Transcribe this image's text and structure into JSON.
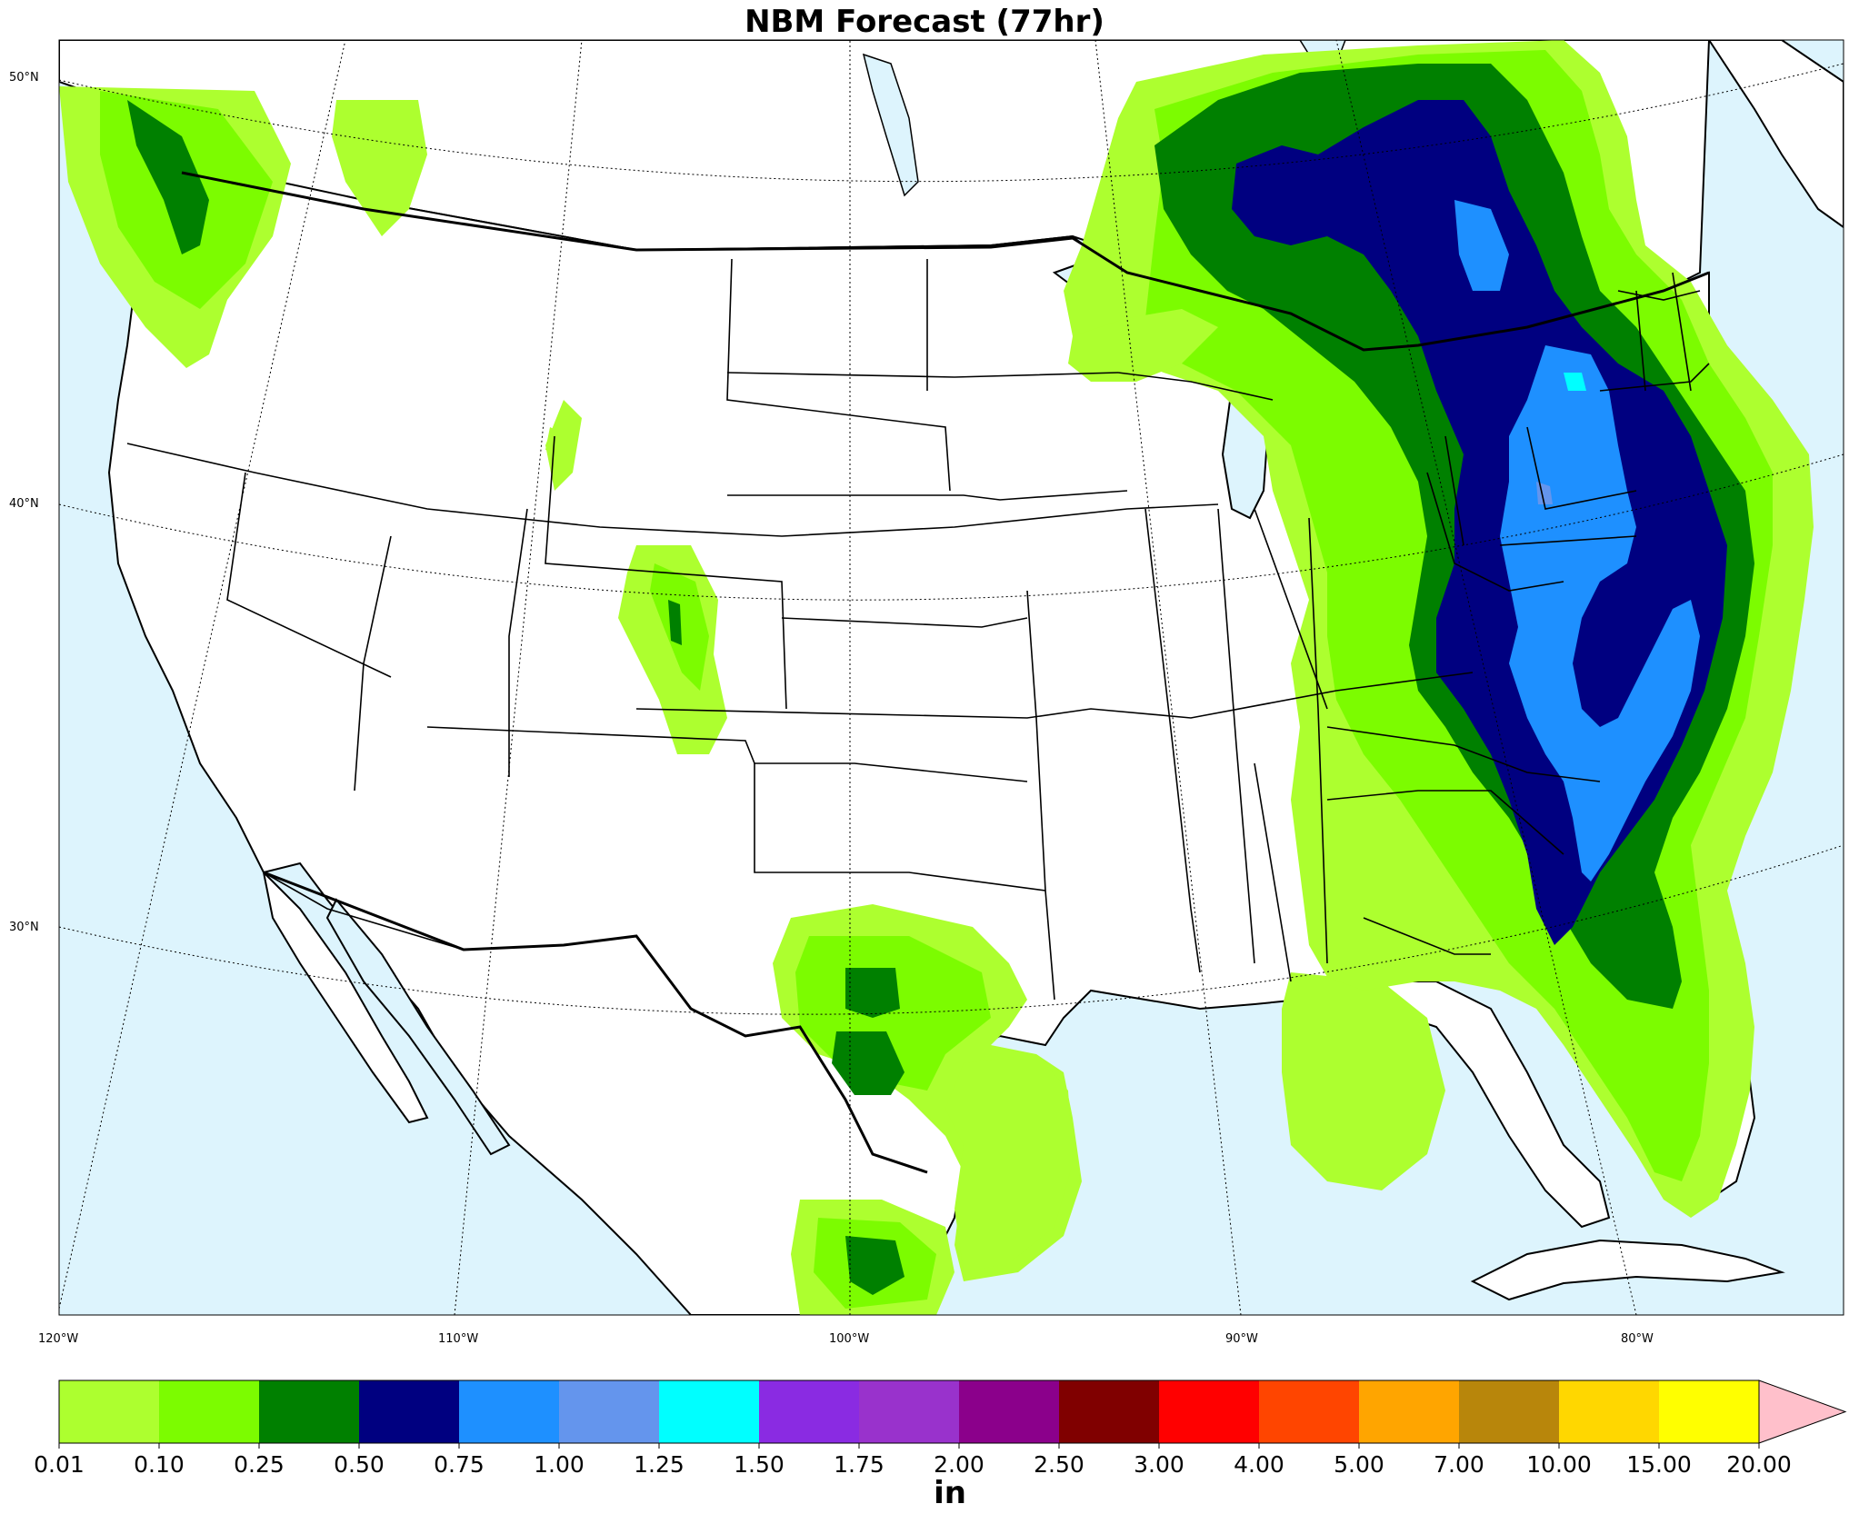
{
  "title": "NBM Forecast (77hr)",
  "map": {
    "land_color": "#ffffff",
    "water_color": "#ddf4fd",
    "lat_labels": [
      "50°N",
      "40°N",
      "30°N"
    ],
    "lon_labels": [
      "120°W",
      "110°W",
      "100°W",
      "90°W",
      "80°W"
    ]
  },
  "colorbar": {
    "unit": "in",
    "ticks": [
      "0.01",
      "0.10",
      "0.25",
      "0.50",
      "0.75",
      "1.00",
      "1.25",
      "1.50",
      "1.75",
      "2.00",
      "2.50",
      "3.00",
      "4.00",
      "5.00",
      "7.00",
      "10.00",
      "15.00",
      "20.00"
    ],
    "colors": [
      "#adff2f",
      "#7cfc00",
      "#008000",
      "#000080",
      "#1e90ff",
      "#6495ed",
      "#00ffff",
      "#8a2be2",
      "#9932cc",
      "#8b008b",
      "#800000",
      "#ff0000",
      "#ff4500",
      "#ffa500",
      "#b8860b",
      "#ffd700",
      "#ffff00"
    ],
    "extend_color": "#ffc0cb"
  }
}
